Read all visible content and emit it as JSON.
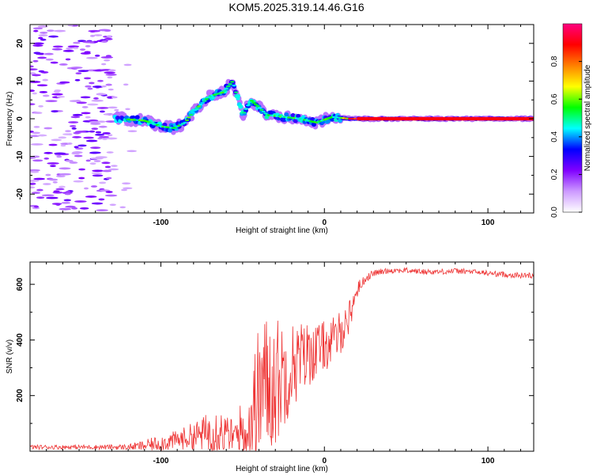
{
  "title": "KOM5.2025.319.14.46.G16",
  "chart_data": [
    {
      "type": "heatmap",
      "xlabel": "Height of straight line (km)",
      "ylabel": "Frequency (Hz)",
      "xlim": [
        -180,
        128
      ],
      "ylim": [
        -25,
        25
      ],
      "x_ticks": [
        -100,
        0,
        100
      ],
      "y_ticks": [
        -20,
        -10,
        0,
        10,
        20
      ],
      "colorbar": {
        "label": "Normalized spectral amplitude",
        "range": [
          0,
          1
        ],
        "ticks": [
          0.0,
          0.2,
          0.4,
          0.6,
          0.8
        ],
        "colors": [
          "#ffffff",
          "#cc99ff",
          "#8000ff",
          "#0000ff",
          "#00ffff",
          "#00ff00",
          "#ffff00",
          "#ff8000",
          "#ff0000",
          "#ff0080"
        ]
      },
      "signal_track": [
        {
          "x": -125,
          "f": 0
        },
        {
          "x": -110,
          "f": -0.5
        },
        {
          "x": -100,
          "f": -2
        },
        {
          "x": -92,
          "f": -2.5
        },
        {
          "x": -85,
          "f": -1
        },
        {
          "x": -80,
          "f": 2
        },
        {
          "x": -75,
          "f": 4
        },
        {
          "x": -70,
          "f": 6
        },
        {
          "x": -62,
          "f": 7
        },
        {
          "x": -56,
          "f": 10
        },
        {
          "x": -50,
          "f": 1
        },
        {
          "x": -45,
          "f": 5
        },
        {
          "x": -40,
          "f": 3
        },
        {
          "x": -35,
          "f": 1
        },
        {
          "x": -25,
          "f": 0.5
        },
        {
          "x": -15,
          "f": 0
        },
        {
          "x": -5,
          "f": -1
        },
        {
          "x": 5,
          "f": 0.5
        },
        {
          "x": 15,
          "f": 0
        },
        {
          "x": 128,
          "f": 0
        }
      ],
      "noise_region_x": [
        -180,
        -130
      ]
    },
    {
      "type": "line",
      "xlabel": "Height of straight line (km)",
      "ylabel": "SNR (v/v)",
      "xlim": [
        -180,
        128
      ],
      "ylim": [
        0,
        680
      ],
      "x_ticks": [
        -100,
        0,
        100
      ],
      "y_ticks": [
        200,
        400,
        600
      ],
      "series": [
        {
          "name": "SNR",
          "color": "#ee3333",
          "x": [
            -180,
            -150,
            -120,
            -110,
            -100,
            -90,
            -80,
            -75,
            -70,
            -65,
            -60,
            -55,
            -50,
            -45,
            -42,
            -40,
            -38,
            -35,
            -30,
            -25,
            -22,
            -20,
            -15,
            -10,
            -5,
            0,
            5,
            10,
            15,
            20,
            25,
            30,
            40,
            50,
            60,
            70,
            80,
            90,
            100,
            110,
            120,
            128
          ],
          "base": [
            15,
            15,
            15,
            20,
            30,
            40,
            55,
            60,
            70,
            80,
            60,
            50,
            80,
            100,
            150,
            200,
            230,
            240,
            250,
            280,
            300,
            310,
            330,
            350,
            360,
            380,
            390,
            430,
            480,
            580,
            620,
            640,
            650,
            650,
            645,
            645,
            648,
            645,
            640,
            635,
            632,
            632
          ],
          "amp": [
            8,
            8,
            10,
            20,
            30,
            35,
            50,
            60,
            80,
            90,
            70,
            60,
            120,
            200,
            250,
            260,
            270,
            260,
            240,
            200,
            180,
            160,
            140,
            120,
            100,
            90,
            90,
            80,
            60,
            30,
            15,
            12,
            10,
            10,
            10,
            10,
            10,
            10,
            10,
            10,
            10,
            10
          ]
        }
      ]
    }
  ]
}
